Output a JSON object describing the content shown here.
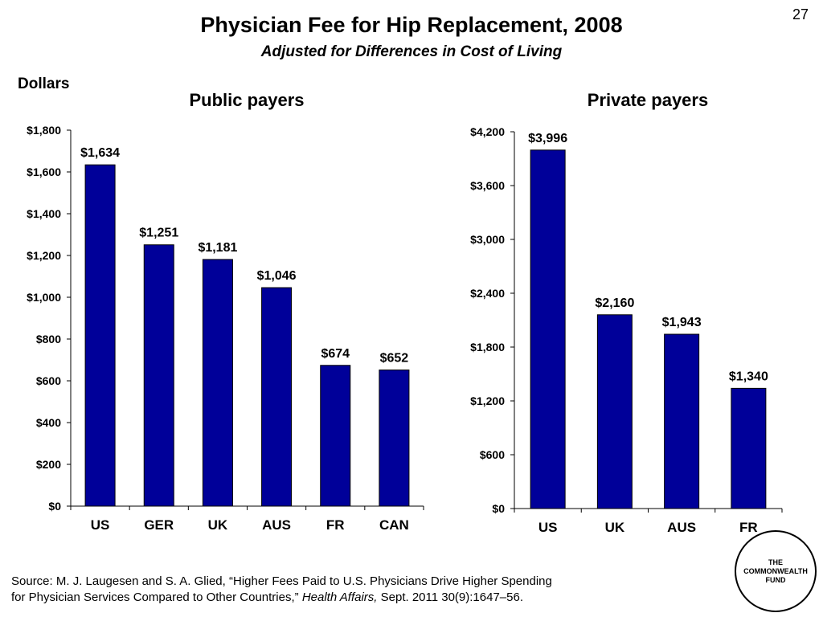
{
  "slide_number": "27",
  "title": "Physician Fee for Hip Replacement, 2008",
  "subtitle": "Adjusted for Differences in Cost of Living",
  "colors": {
    "bar": "#000099"
  },
  "chart_data": [
    {
      "type": "bar",
      "title": "Public payers",
      "ylabel": "Dollars",
      "categories": [
        "US",
        "GER",
        "UK",
        "AUS",
        "FR",
        "CAN"
      ],
      "values": [
        1634,
        1251,
        1181,
        1046,
        674,
        652
      ],
      "data_labels": [
        "$1,634",
        "$1,251",
        "$1,181",
        "$1,046",
        "$674",
        "$652"
      ],
      "ylim": [
        0,
        1800
      ],
      "yticks": [
        0,
        200,
        400,
        600,
        800,
        1000,
        1200,
        1400,
        1600,
        1800
      ],
      "ytick_labels": [
        "$0",
        "$200",
        "$400",
        "$600",
        "$800",
        "$1,000",
        "$1,200",
        "$1,400",
        "$1,600",
        "$1,800"
      ],
      "grid": false
    },
    {
      "type": "bar",
      "title": "Private payers",
      "categories": [
        "US",
        "UK",
        "AUS",
        "FR"
      ],
      "values": [
        3996,
        2160,
        1943,
        1340
      ],
      "data_labels": [
        "$3,996",
        "$2,160",
        "$1,943",
        "$1,340"
      ],
      "ylim": [
        0,
        4200
      ],
      "yticks": [
        0,
        600,
        1200,
        1800,
        2400,
        3000,
        3600,
        4200
      ],
      "ytick_labels": [
        "$0",
        "$600",
        "$1,200",
        "$1,800",
        "$2,400",
        "$3,000",
        "$3,600",
        "$4,200"
      ],
      "grid": false
    }
  ],
  "source": {
    "line1": "Source: M. J. Laugesen and S. A. Glied, “Higher Fees Paid to U.S. Physicians Drive Higher Spending",
    "line2_prefix": "for Physician Services Compared to Other Countries,” ",
    "line2_journal": "Health Affairs,",
    "line2_suffix": " Sept. 2011 30(9):1647–56."
  },
  "logo": {
    "line1": "THE",
    "line2": "COMMONWEALTH",
    "line3": "FUND"
  }
}
